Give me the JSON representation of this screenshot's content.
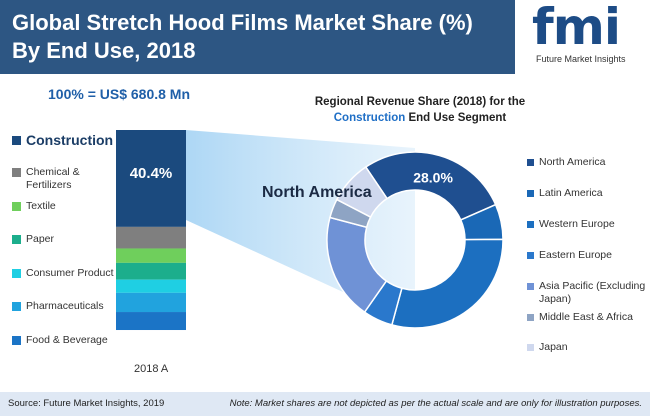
{
  "header": {
    "title": "Global Stretch Hood Films Market Share (%) By End Use, 2018",
    "logo_text": "fmi",
    "logo_subtitle": "Future Market Insights"
  },
  "total_label": "100% = US$ 680.8 Mn",
  "pie_title": {
    "line1": "Regional Revenue Share (2018) for the",
    "highlight": "Construction",
    "line2_rest": " End  Use Segment"
  },
  "colors": {
    "header_band": "#2d5683",
    "construction": "#1b4a7e",
    "chemical": "#7f7f7f",
    "textile": "#6fcf5c",
    "paper": "#1cae8c",
    "consumer": "#1fcfe3",
    "pharma": "#21a3de",
    "food": "#1b74c6",
    "north_america": "#1f4f90",
    "latin_america": "#1a68b6",
    "western_europe": "#1c6fc0",
    "eastern_europe": "#2a78cc",
    "apej": "#6f92d6",
    "mea": "#8ea4c4",
    "japan": "#cfd8ee"
  },
  "chart_data": [
    {
      "type": "bar",
      "subtype": "stacked-100",
      "title": "Global Stretch Hood Films Market Share (%) By End Use, 2018",
      "categories": [
        "2018 A"
      ],
      "series": [
        {
          "name": "Construction",
          "values": [
            40.4
          ],
          "label": "40.4%"
        },
        {
          "name": "Chemical & Fertilizers",
          "values": [
            9
          ]
        },
        {
          "name": "Textile",
          "values": [
            6
          ]
        },
        {
          "name": "Paper",
          "values": [
            7
          ]
        },
        {
          "name": "Consumer Product",
          "values": [
            5.5
          ]
        },
        {
          "name": "Pharmaceuticals",
          "values": [
            8
          ]
        },
        {
          "name": "Food & Beverage",
          "values": [
            7.5
          ]
        }
      ],
      "ylim": [
        0,
        93.4
      ]
    },
    {
      "type": "pie",
      "subtype": "donut",
      "title": "Regional Revenue Share (2018) for the Construction End Use Segment",
      "slices": [
        {
          "name": "North America",
          "value": 28.0,
          "label": "28.0%"
        },
        {
          "name": "Latin America",
          "value": 6.5
        },
        {
          "name": "Western Europe",
          "value": 29.5
        },
        {
          "name": "Eastern Europe",
          "value": 5.5
        },
        {
          "name": "Asia Pacific (Excluding Japan)",
          "value": 19.5
        },
        {
          "name": "Middle East & Africa",
          "value": 3.5
        },
        {
          "name": "Japan",
          "value": 8.0
        }
      ]
    }
  ],
  "bar_legend": [
    "Construction",
    "Chemical & Fertilizers",
    "Textile",
    "Paper",
    "Consumer Product",
    "Pharmaceuticals",
    "Food & Beverage"
  ],
  "pie_callout": "North America",
  "region_legend": [
    "North America",
    "Latin America",
    "Western Europe",
    "Eastern Europe",
    "Asia Pacific (Excluding Japan)",
    "Middle East & Africa",
    "Japan"
  ],
  "footer": {
    "source": "Source: Future  Market  Insights, 2019",
    "note": "Note: Market shares are not depicted as per the actual scale and are only for illustration purposes."
  }
}
